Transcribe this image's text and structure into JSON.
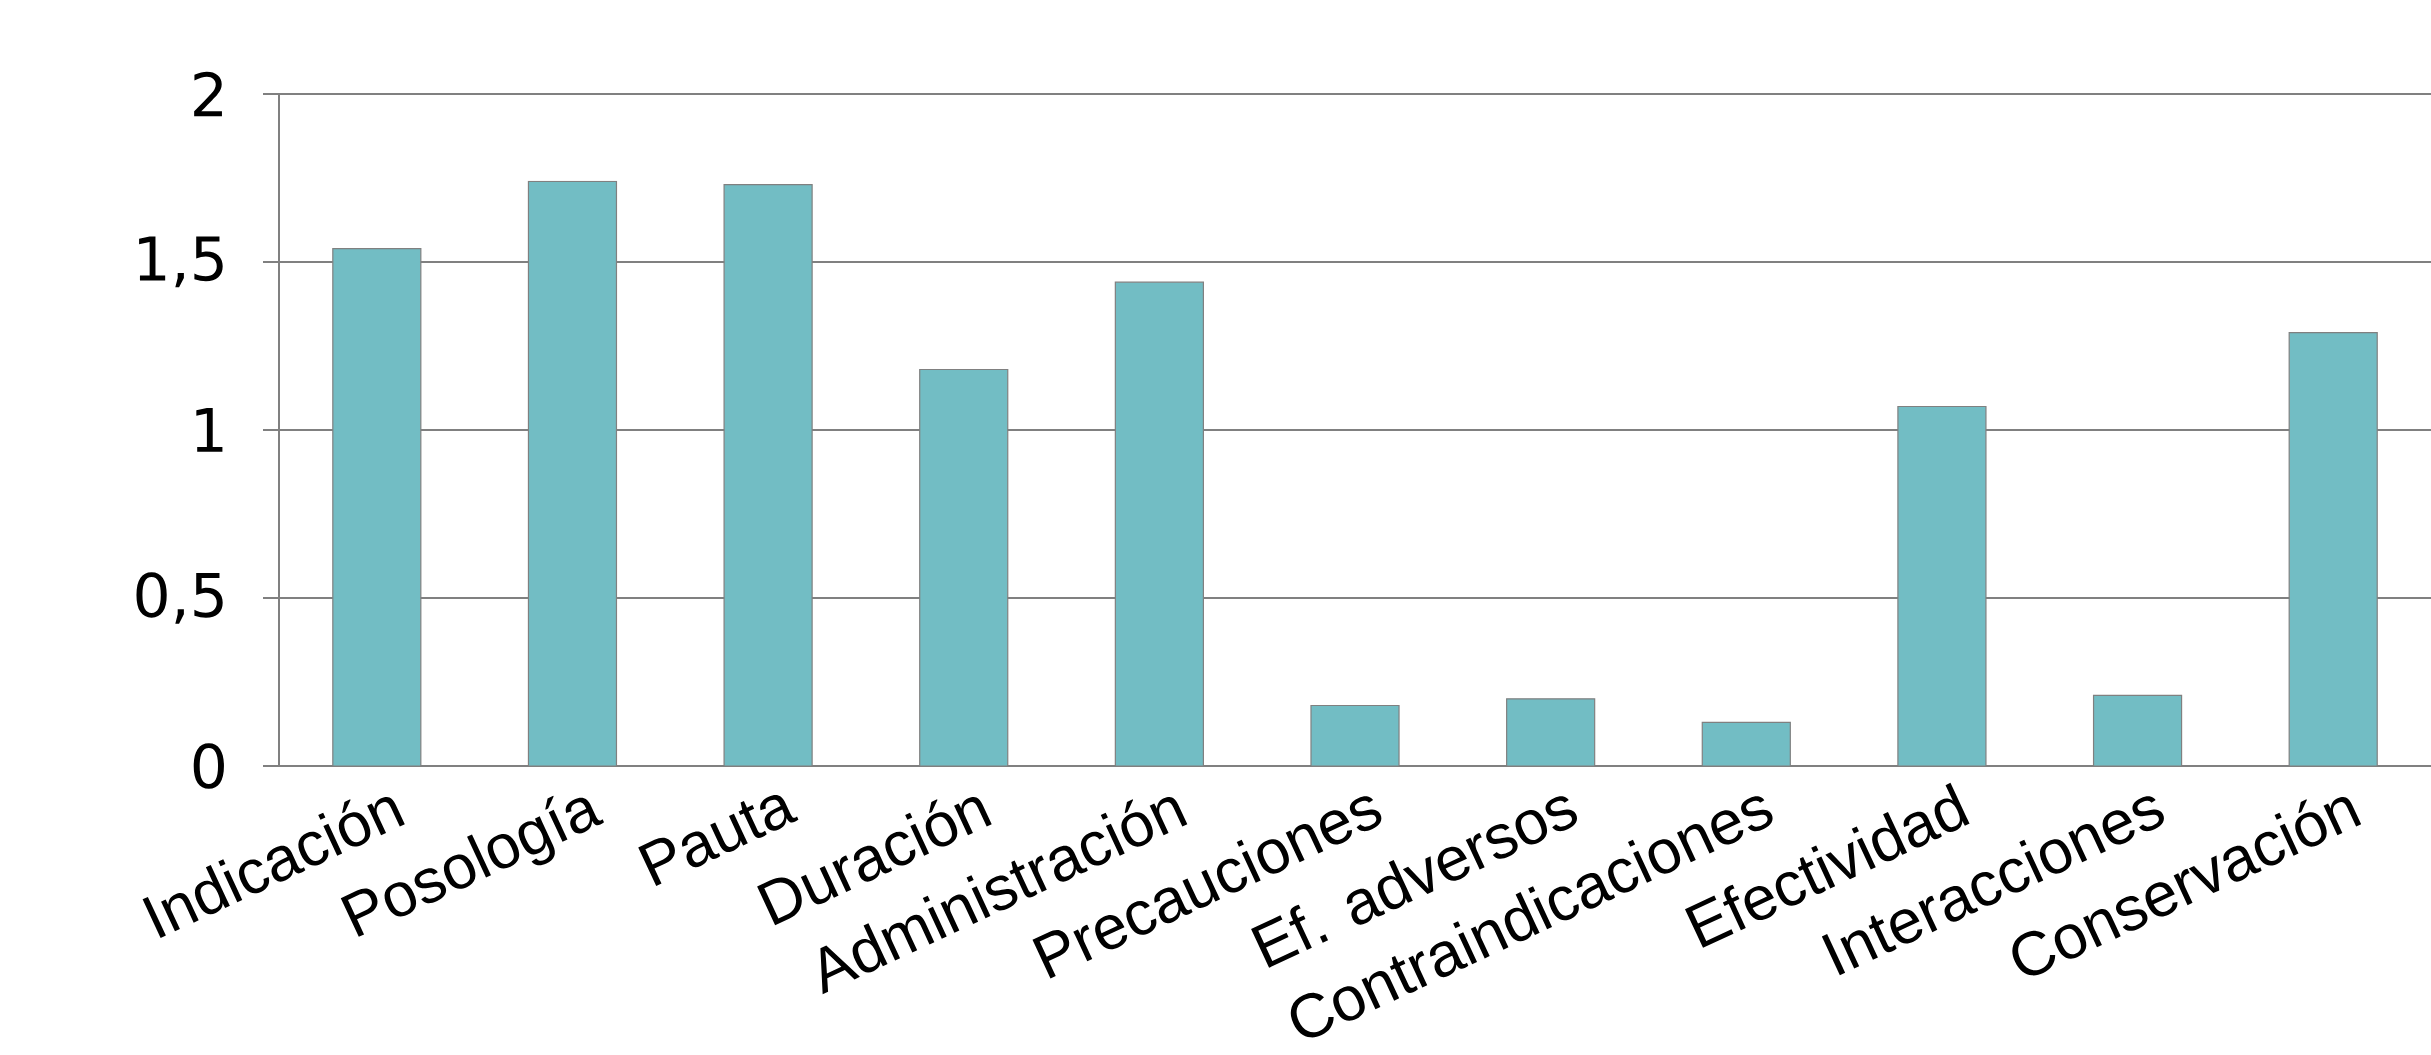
{
  "chart_data": {
    "type": "bar",
    "categories": [
      "Indicación",
      "Posología",
      "Pauta",
      "Duración",
      "Administración",
      "Precauciones",
      "Ef. adversos",
      "Contraindicaciones",
      "Efectividad",
      "Interacciones",
      "Conservación"
    ],
    "values": [
      1.54,
      1.74,
      1.73,
      1.18,
      1.44,
      0.18,
      0.2,
      0.13,
      1.07,
      0.21,
      1.29
    ],
    "color": "#72bdc4",
    "ylim": [
      0,
      2
    ],
    "yticks": [
      0,
      {
        "value": 0.5,
        "label": "0,5"
      },
      1,
      {
        "value": 1.5,
        "label": "1,5"
      },
      2
    ],
    "grid": "y"
  }
}
